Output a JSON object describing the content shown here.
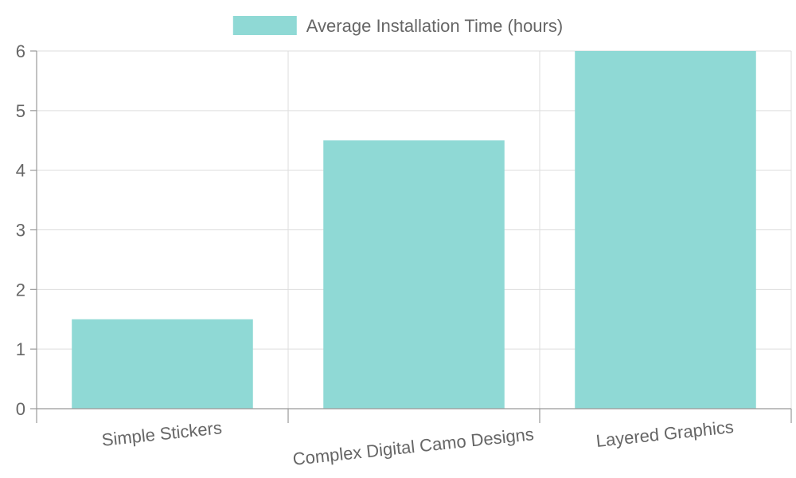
{
  "chart_data": {
    "type": "bar",
    "categories": [
      "Simple Stickers",
      "Complex Digital Camo Designs",
      "Layered Graphics"
    ],
    "series": [
      {
        "name": "Average Installation Time (hours)",
        "values": [
          1.5,
          4.5,
          6
        ],
        "color": "#8fd9d5"
      }
    ],
    "ylim": [
      0,
      6
    ],
    "yticks": [
      0,
      1,
      2,
      3,
      4,
      5,
      6
    ],
    "grid": true,
    "legend_position": "top-center",
    "x_tick_rotation": "slanted"
  }
}
